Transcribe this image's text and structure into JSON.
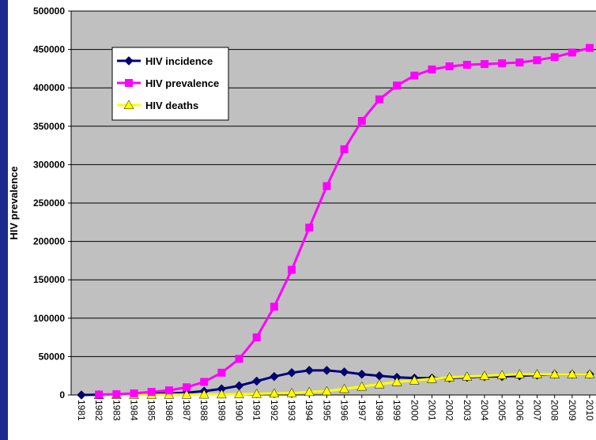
{
  "chart_data": {
    "type": "line",
    "title": "",
    "xlabel": "",
    "ylabel": "HIV prevalence",
    "ylim": [
      0,
      500000
    ],
    "yticks": [
      0,
      50000,
      100000,
      150000,
      200000,
      250000,
      300000,
      350000,
      400000,
      450000,
      500000
    ],
    "categories": [
      "1981",
      "1982",
      "1983",
      "1984",
      "1985",
      "1986",
      "1987",
      "1988",
      "1989",
      "1990",
      "1991",
      "1992",
      "1993",
      "1994",
      "1995",
      "1996",
      "1997",
      "1998",
      "1999",
      "2000",
      "2001",
      "2002",
      "2003",
      "2004",
      "2005",
      "2006",
      "2007",
      "2008",
      "2009",
      "2010"
    ],
    "grid": "horizontal",
    "legend_position": "top-left",
    "series": [
      {
        "name": "HIV incidence",
        "color": "#00007f",
        "marker": "diamond",
        "values": [
          0,
          200,
          500,
          1000,
          1500,
          2000,
          3000,
          5000,
          8000,
          12000,
          18000,
          24000,
          29000,
          32000,
          32000,
          30000,
          27000,
          25000,
          23000,
          22000,
          22000,
          22000,
          23000,
          24000,
          24000,
          25000,
          26000,
          27000,
          27000,
          27000
        ]
      },
      {
        "name": "HIV prevalence",
        "color": "#ff00ff",
        "marker": "square",
        "values": [
          null,
          500,
          1000,
          2000,
          4000,
          6000,
          10000,
          17000,
          29000,
          47000,
          75000,
          115000,
          163000,
          218000,
          272000,
          320000,
          357000,
          385000,
          403000,
          416000,
          424000,
          428000,
          430000,
          431000,
          432000,
          433000,
          436000,
          440000,
          446000,
          452000
        ]
      },
      {
        "name": "HIV deaths",
        "color": "#ffff00",
        "marker": "triangle",
        "values": [
          null,
          0,
          100,
          200,
          300,
          400,
          500,
          700,
          900,
          1000,
          1500,
          2000,
          2500,
          4000,
          5000,
          8000,
          11000,
          14000,
          17000,
          19000,
          21000,
          23000,
          24000,
          25000,
          26000,
          27000,
          27000,
          27000,
          27000,
          27000
        ]
      }
    ]
  }
}
